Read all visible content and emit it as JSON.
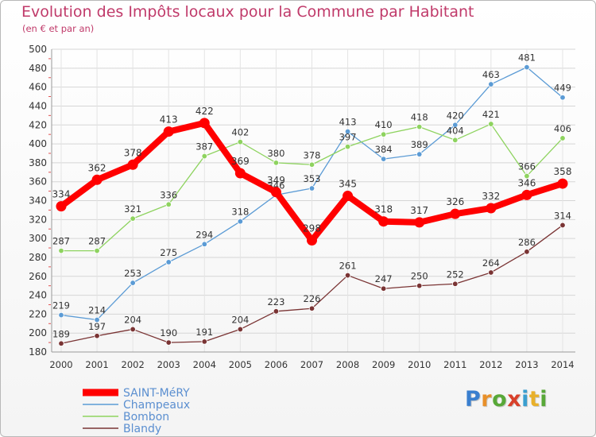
{
  "header": {
    "title": "Evolution des Impôts locaux pour la Commune par Habitant",
    "subtitle": "(en € et par an)"
  },
  "logo": {
    "text": "Proxiti"
  },
  "chart_data": {
    "type": "line",
    "title": "Evolution des Impôts locaux pour la Commune par Habitant",
    "subtitle": "(en € et par an)",
    "xlabel": "",
    "ylabel": "",
    "categories": [
      "2000",
      "2001",
      "2002",
      "2003",
      "2004",
      "2005",
      "2006",
      "2007",
      "2008",
      "2009",
      "2010",
      "2011",
      "2012",
      "2013",
      "2014"
    ],
    "ylim": [
      180,
      500
    ],
    "yticks": [
      180,
      200,
      220,
      240,
      260,
      280,
      300,
      320,
      340,
      360,
      380,
      400,
      420,
      440,
      460,
      480,
      500
    ],
    "grid": true,
    "legend_position": "bottom-left",
    "series": [
      {
        "name": "SAINT-MéRY",
        "color": "#ff0000",
        "highlight": true,
        "values": [
          334,
          362,
          378,
          413,
          422,
          369,
          349,
          298,
          345,
          318,
          317,
          326,
          332,
          346,
          358
        ]
      },
      {
        "name": "Champeaux",
        "color": "#5b9bd5",
        "highlight": false,
        "values": [
          219,
          214,
          253,
          275,
          294,
          318,
          346,
          353,
          413,
          384,
          389,
          420,
          463,
          481,
          449
        ]
      },
      {
        "name": "Bombon",
        "color": "#8ed35f",
        "highlight": false,
        "values": [
          287,
          287,
          321,
          336,
          387,
          402,
          380,
          378,
          397,
          410,
          418,
          404,
          421,
          366,
          406
        ]
      },
      {
        "name": "Blandy",
        "color": "#7a3434",
        "highlight": false,
        "values": [
          189,
          197,
          204,
          190,
          191,
          204,
          223,
          226,
          261,
          247,
          250,
          252,
          264,
          286,
          314
        ]
      }
    ]
  }
}
